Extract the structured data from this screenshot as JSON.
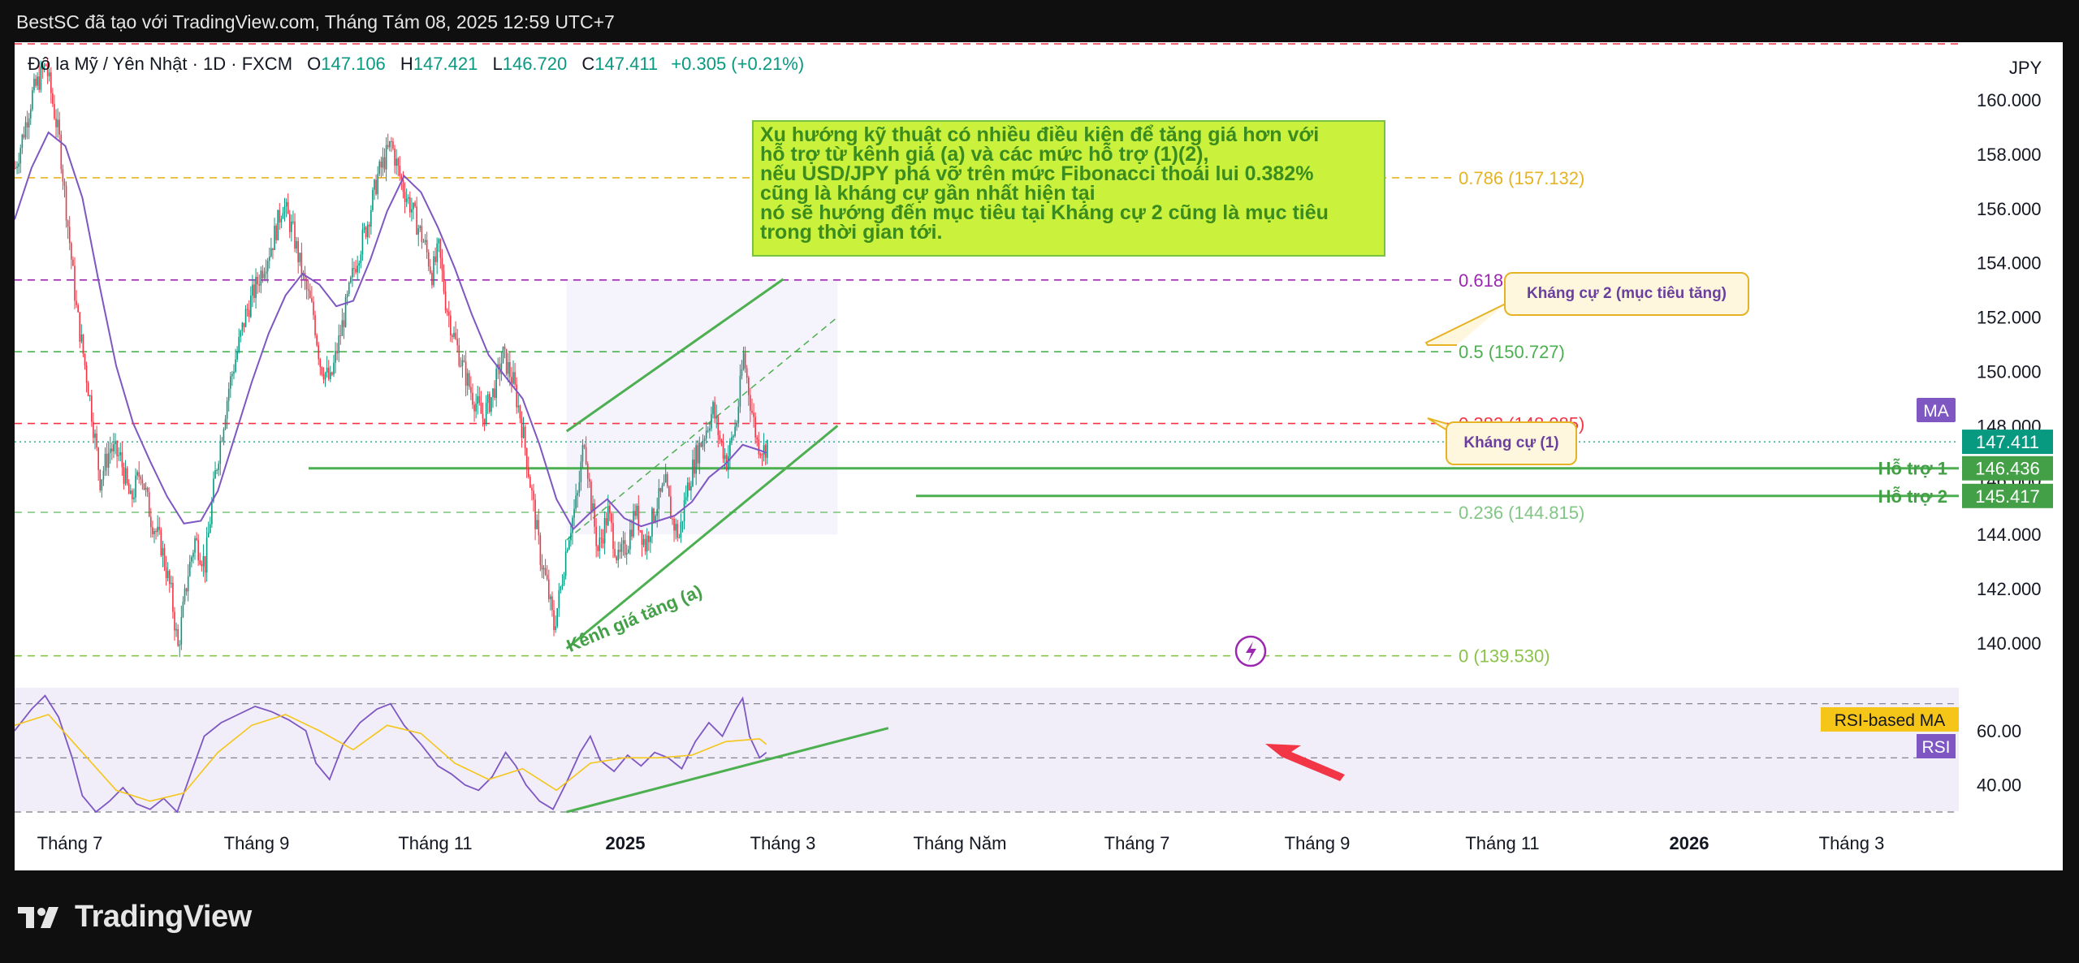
{
  "topbar": {
    "title": "BestSC đã tạo với TradingView.com, Tháng Tám 08, 2025 12:59 UTC+7"
  },
  "legend": {
    "symbol": "Đô la Mỹ / Yên Nhật · 1D · FXCM",
    "open_key": "O",
    "open": "147.106",
    "high_key": "H",
    "high": "147.421",
    "low_key": "L",
    "low": "146.720",
    "close_key": "C",
    "close": "147.411",
    "change": "+0.305 (+0.21%)"
  },
  "currency": "JPY",
  "note": {
    "lines": [
      "Xu hướng kỹ thuật có nhiều điều kiện để tăng giá hơn với",
      "hỗ trợ từ kênh giá (a) và các mức hỗ trợ (1)(2),",
      "nếu USD/JPY phá vỡ trên mức Fibonacci thoái lui 0.382%",
      "cũng là kháng cự gần nhất hiện tại",
      "nó sẽ hướng đến mục tiêu tại Kháng cự 2 cũng là mục tiêu",
      "trong thời gian tới."
    ]
  },
  "callouts": {
    "resistance2": "Kháng cự 2 (mục tiêu tăng)",
    "resistance1": "Kháng cự (1)"
  },
  "channel_label": "Kênh giá tăng (a)",
  "footer": {
    "brand": "TradingView"
  },
  "colors": {
    "up": "#089981",
    "down": "#f23645",
    "ma": "#7e57c2",
    "rsi": "#7e57c2",
    "rsi_ma": "#f5c518",
    "green_lines": "#4caf50",
    "fib_0786": "#e6b325",
    "fib_0618": "#9c27b0",
    "fib_05": "#4caf50",
    "fib_0382": "#f23645",
    "fib_0236": "#81c784",
    "fib_0": "#8bc34a",
    "note_bg": "#caf13c",
    "arrow": "#f23645"
  },
  "chart_data": {
    "type": "candlestick",
    "symbol": "USDJPY",
    "timeframe": "1D",
    "ylim": [
      138.5,
      161.5
    ],
    "y_ticks": [
      "160.000",
      "158.000",
      "156.000",
      "154.000",
      "152.000",
      "150.000",
      "148.000",
      "146.000",
      "144.000",
      "142.000",
      "140.000"
    ],
    "x_ticks": [
      "Tháng 7",
      "Tháng 9",
      "Tháng 11",
      "2025",
      "Tháng 3",
      "Tháng Năm",
      "Tháng 7",
      "Tháng 9",
      "Tháng 11",
      "2026",
      "Tháng 3"
    ],
    "last_price": "147.411",
    "fibonacci": [
      {
        "ratio": "0.786",
        "label": "0.786 (157.132)",
        "price": 157.132
      },
      {
        "ratio": "0.618",
        "label": "0.618 (153.370)",
        "price": 153.37
      },
      {
        "ratio": "0.5",
        "label": "0.5 (150.727)",
        "price": 150.727
      },
      {
        "ratio": "0.382",
        "label": "0.382 (148.085)",
        "price": 148.085
      },
      {
        "ratio": "0.236",
        "label": "0.236 (144.815)",
        "price": 144.815
      },
      {
        "ratio": "0",
        "label": "0 (139.530)",
        "price": 139.53
      }
    ],
    "supports": [
      {
        "label": "Hỗ trợ 1",
        "price": 146.436,
        "value_label": "146.436"
      },
      {
        "label": "Hỗ trợ 2",
        "price": 145.417,
        "value_label": "145.417"
      }
    ],
    "ma_label": "MA",
    "ohlc_path": [
      [
        0,
        157.5
      ],
      [
        10,
        160.2
      ],
      [
        18,
        161.3
      ],
      [
        26,
        158.5
      ],
      [
        30,
        156.0
      ],
      [
        36,
        152.3
      ],
      [
        44,
        149.0
      ],
      [
        50,
        146.0
      ],
      [
        56,
        147.2
      ],
      [
        62,
        146.8
      ],
      [
        68,
        145.2
      ],
      [
        74,
        146.4
      ],
      [
        80,
        144.6
      ],
      [
        86,
        143.6
      ],
      [
        92,
        141.8
      ],
      [
        96,
        139.8
      ],
      [
        102,
        142.6
      ],
      [
        106,
        143.8
      ],
      [
        112,
        142.9
      ],
      [
        118,
        146.2
      ],
      [
        126,
        149.4
      ],
      [
        136,
        152.1
      ],
      [
        146,
        153.8
      ],
      [
        152,
        154.8
      ],
      [
        158,
        156.2
      ],
      [
        164,
        155.1
      ],
      [
        170,
        153.4
      ],
      [
        176,
        152.1
      ],
      [
        180,
        150.3
      ],
      [
        186,
        149.6
      ],
      [
        192,
        151.4
      ],
      [
        200,
        153.8
      ],
      [
        208,
        155.5
      ],
      [
        214,
        157.2
      ],
      [
        218,
        157.8
      ],
      [
        222,
        158.4
      ],
      [
        226,
        157.4
      ],
      [
        230,
        156.6
      ],
      [
        234,
        156.0
      ],
      [
        238,
        155.3
      ],
      [
        242,
        154.6
      ],
      [
        246,
        153.6
      ],
      [
        250,
        154.5
      ],
      [
        254,
        152.6
      ],
      [
        258,
        151.5
      ],
      [
        264,
        150.2
      ],
      [
        270,
        149.1
      ],
      [
        276,
        148.3
      ],
      [
        282,
        149.2
      ],
      [
        288,
        150.6
      ],
      [
        294,
        149.6
      ],
      [
        298,
        148.4
      ],
      [
        302,
        146.8
      ],
      [
        306,
        145.0
      ],
      [
        310,
        143.2
      ],
      [
        314,
        142.1
      ],
      [
        318,
        140.6
      ],
      [
        322,
        142.0
      ],
      [
        326,
        143.8
      ],
      [
        332,
        145.4
      ],
      [
        336,
        147.6
      ],
      [
        340,
        145.2
      ],
      [
        344,
        143.4
      ],
      [
        350,
        144.8
      ],
      [
        356,
        143.0
      ],
      [
        362,
        143.8
      ],
      [
        366,
        144.9
      ],
      [
        372,
        143.6
      ],
      [
        378,
        145.0
      ],
      [
        384,
        145.8
      ],
      [
        388,
        144.5
      ],
      [
        392,
        143.9
      ],
      [
        396,
        145.5
      ],
      [
        402,
        146.9
      ],
      [
        408,
        147.9
      ],
      [
        412,
        148.6
      ],
      [
        416,
        147.5
      ],
      [
        420,
        146.7
      ],
      [
        426,
        148.2
      ],
      [
        430,
        150.6
      ],
      [
        434,
        148.9
      ],
      [
        438,
        147.4
      ],
      [
        442,
        147.1
      ],
      [
        444,
        147.4
      ]
    ],
    "ma_path": [
      [
        0,
        155.6
      ],
      [
        10,
        157.5
      ],
      [
        20,
        158.8
      ],
      [
        30,
        158.3
      ],
      [
        40,
        156.4
      ],
      [
        50,
        153.2
      ],
      [
        60,
        150.2
      ],
      [
        70,
        148.1
      ],
      [
        80,
        146.7
      ],
      [
        90,
        145.4
      ],
      [
        100,
        144.4
      ],
      [
        110,
        144.5
      ],
      [
        120,
        145.6
      ],
      [
        130,
        147.6
      ],
      [
        140,
        149.6
      ],
      [
        150,
        151.4
      ],
      [
        160,
        152.8
      ],
      [
        170,
        153.6
      ],
      [
        180,
        153.2
      ],
      [
        190,
        152.4
      ],
      [
        200,
        152.6
      ],
      [
        210,
        154.1
      ],
      [
        220,
        155.9
      ],
      [
        230,
        157.2
      ],
      [
        240,
        156.6
      ],
      [
        250,
        155.3
      ],
      [
        260,
        153.8
      ],
      [
        270,
        152.1
      ],
      [
        280,
        150.6
      ],
      [
        290,
        149.8
      ],
      [
        300,
        149.0
      ],
      [
        310,
        147.3
      ],
      [
        320,
        145.3
      ],
      [
        330,
        144.2
      ],
      [
        340,
        144.8
      ],
      [
        350,
        145.3
      ],
      [
        360,
        144.6
      ],
      [
        370,
        144.3
      ],
      [
        380,
        144.5
      ],
      [
        390,
        144.7
      ],
      [
        400,
        145.2
      ],
      [
        410,
        146.1
      ],
      [
        420,
        146.6
      ],
      [
        430,
        147.3
      ],
      [
        440,
        147.1
      ],
      [
        444,
        147.0
      ]
    ],
    "channel": {
      "upper": [
        [
          326,
          147.8
        ],
        [
          454,
          153.4
        ]
      ],
      "lower": [
        [
          326,
          139.8
        ],
        [
          486,
          148.0
        ]
      ],
      "mid": [
        [
          326,
          143.8
        ],
        [
          486,
          152.0
        ]
      ]
    },
    "rsi": {
      "ylim": [
        30,
        75
      ],
      "y_ticks": [
        "60.00",
        "40.00"
      ],
      "levels": [
        70,
        50,
        30
      ],
      "series_label": "RSI",
      "ma_label": "RSI-based MA",
      "path": [
        [
          0,
          60
        ],
        [
          10,
          68
        ],
        [
          18,
          73
        ],
        [
          26,
          65
        ],
        [
          34,
          50
        ],
        [
          40,
          36
        ],
        [
          48,
          30
        ],
        [
          56,
          34
        ],
        [
          64,
          39
        ],
        [
          72,
          33
        ],
        [
          80,
          31
        ],
        [
          88,
          35
        ],
        [
          96,
          30
        ],
        [
          104,
          44
        ],
        [
          112,
          58
        ],
        [
          122,
          63
        ],
        [
          132,
          66
        ],
        [
          142,
          69
        ],
        [
          152,
          67
        ],
        [
          162,
          64
        ],
        [
          172,
          60
        ],
        [
          178,
          48
        ],
        [
          186,
          42
        ],
        [
          194,
          55
        ],
        [
          204,
          63
        ],
        [
          214,
          68
        ],
        [
          222,
          70
        ],
        [
          230,
          62
        ],
        [
          240,
          55
        ],
        [
          250,
          47
        ],
        [
          258,
          44
        ],
        [
          266,
          40
        ],
        [
          274,
          38
        ],
        [
          282,
          43
        ],
        [
          290,
          52
        ],
        [
          296,
          47
        ],
        [
          302,
          40
        ],
        [
          310,
          34
        ],
        [
          318,
          31
        ],
        [
          326,
          41
        ],
        [
          334,
          52
        ],
        [
          340,
          58
        ],
        [
          346,
          49
        ],
        [
          354,
          45
        ],
        [
          362,
          51
        ],
        [
          370,
          47
        ],
        [
          378,
          52
        ],
        [
          386,
          50
        ],
        [
          394,
          46
        ],
        [
          402,
          56
        ],
        [
          410,
          63
        ],
        [
          418,
          58
        ],
        [
          426,
          68
        ],
        [
          430,
          72
        ],
        [
          434,
          58
        ],
        [
          440,
          50
        ],
        [
          444,
          52
        ]
      ],
      "ma_path": [
        [
          0,
          62
        ],
        [
          20,
          66
        ],
        [
          40,
          52
        ],
        [
          60,
          38
        ],
        [
          80,
          34
        ],
        [
          100,
          37
        ],
        [
          120,
          52
        ],
        [
          140,
          62
        ],
        [
          160,
          66
        ],
        [
          180,
          60
        ],
        [
          200,
          53
        ],
        [
          220,
          62
        ],
        [
          240,
          59
        ],
        [
          260,
          48
        ],
        [
          280,
          42
        ],
        [
          300,
          46
        ],
        [
          320,
          38
        ],
        [
          340,
          48
        ],
        [
          360,
          50
        ],
        [
          380,
          50
        ],
        [
          400,
          51
        ],
        [
          420,
          56
        ],
        [
          440,
          57
        ],
        [
          444,
          55
        ]
      ],
      "trendline": [
        [
          326,
          30
        ],
        [
          516,
          61
        ]
      ]
    }
  }
}
